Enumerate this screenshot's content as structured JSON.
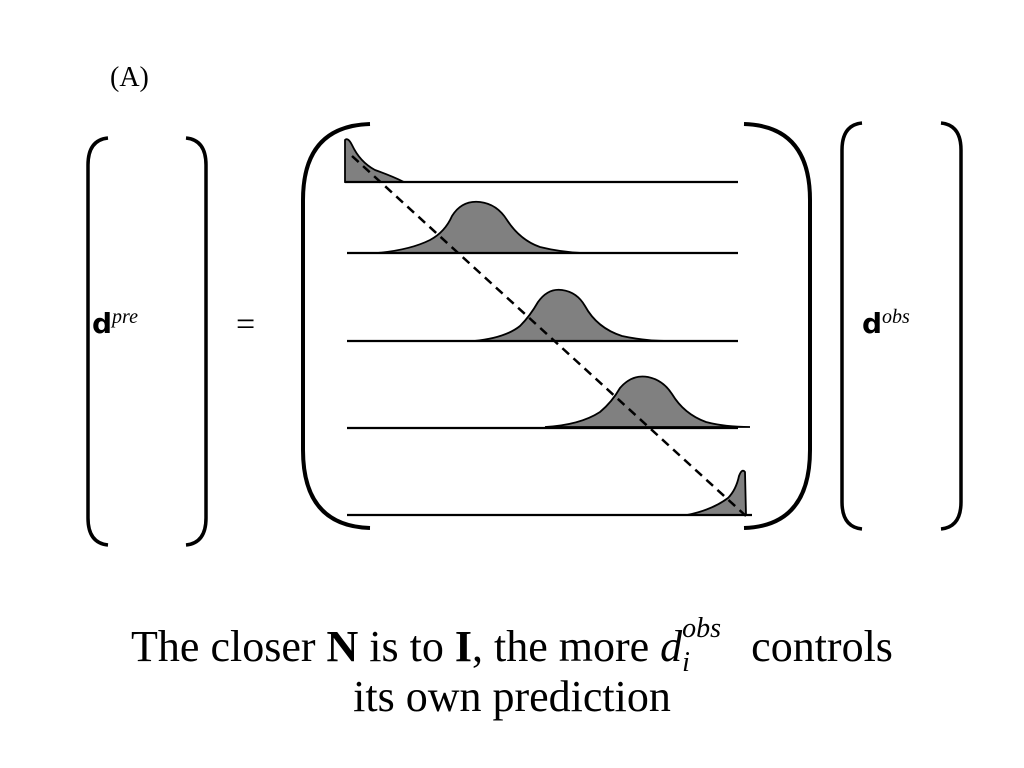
{
  "panel_label": "(A)",
  "lhs": {
    "symbol": "d",
    "superscript": "pre"
  },
  "equals": "=",
  "rhs": {
    "symbol": "d",
    "superscript": "obs"
  },
  "matrix": {
    "row_count": 5,
    "fill_color": "#808080",
    "line_color": "#000000"
  },
  "caption": {
    "part1": "The closer ",
    "N": "N",
    "part2": " is to ",
    "I": "I",
    "part3": ", the more ",
    "d": "d",
    "d_sub": "i",
    "d_sup": "obs",
    "part4": " controls",
    "line2": "its own prediction"
  }
}
